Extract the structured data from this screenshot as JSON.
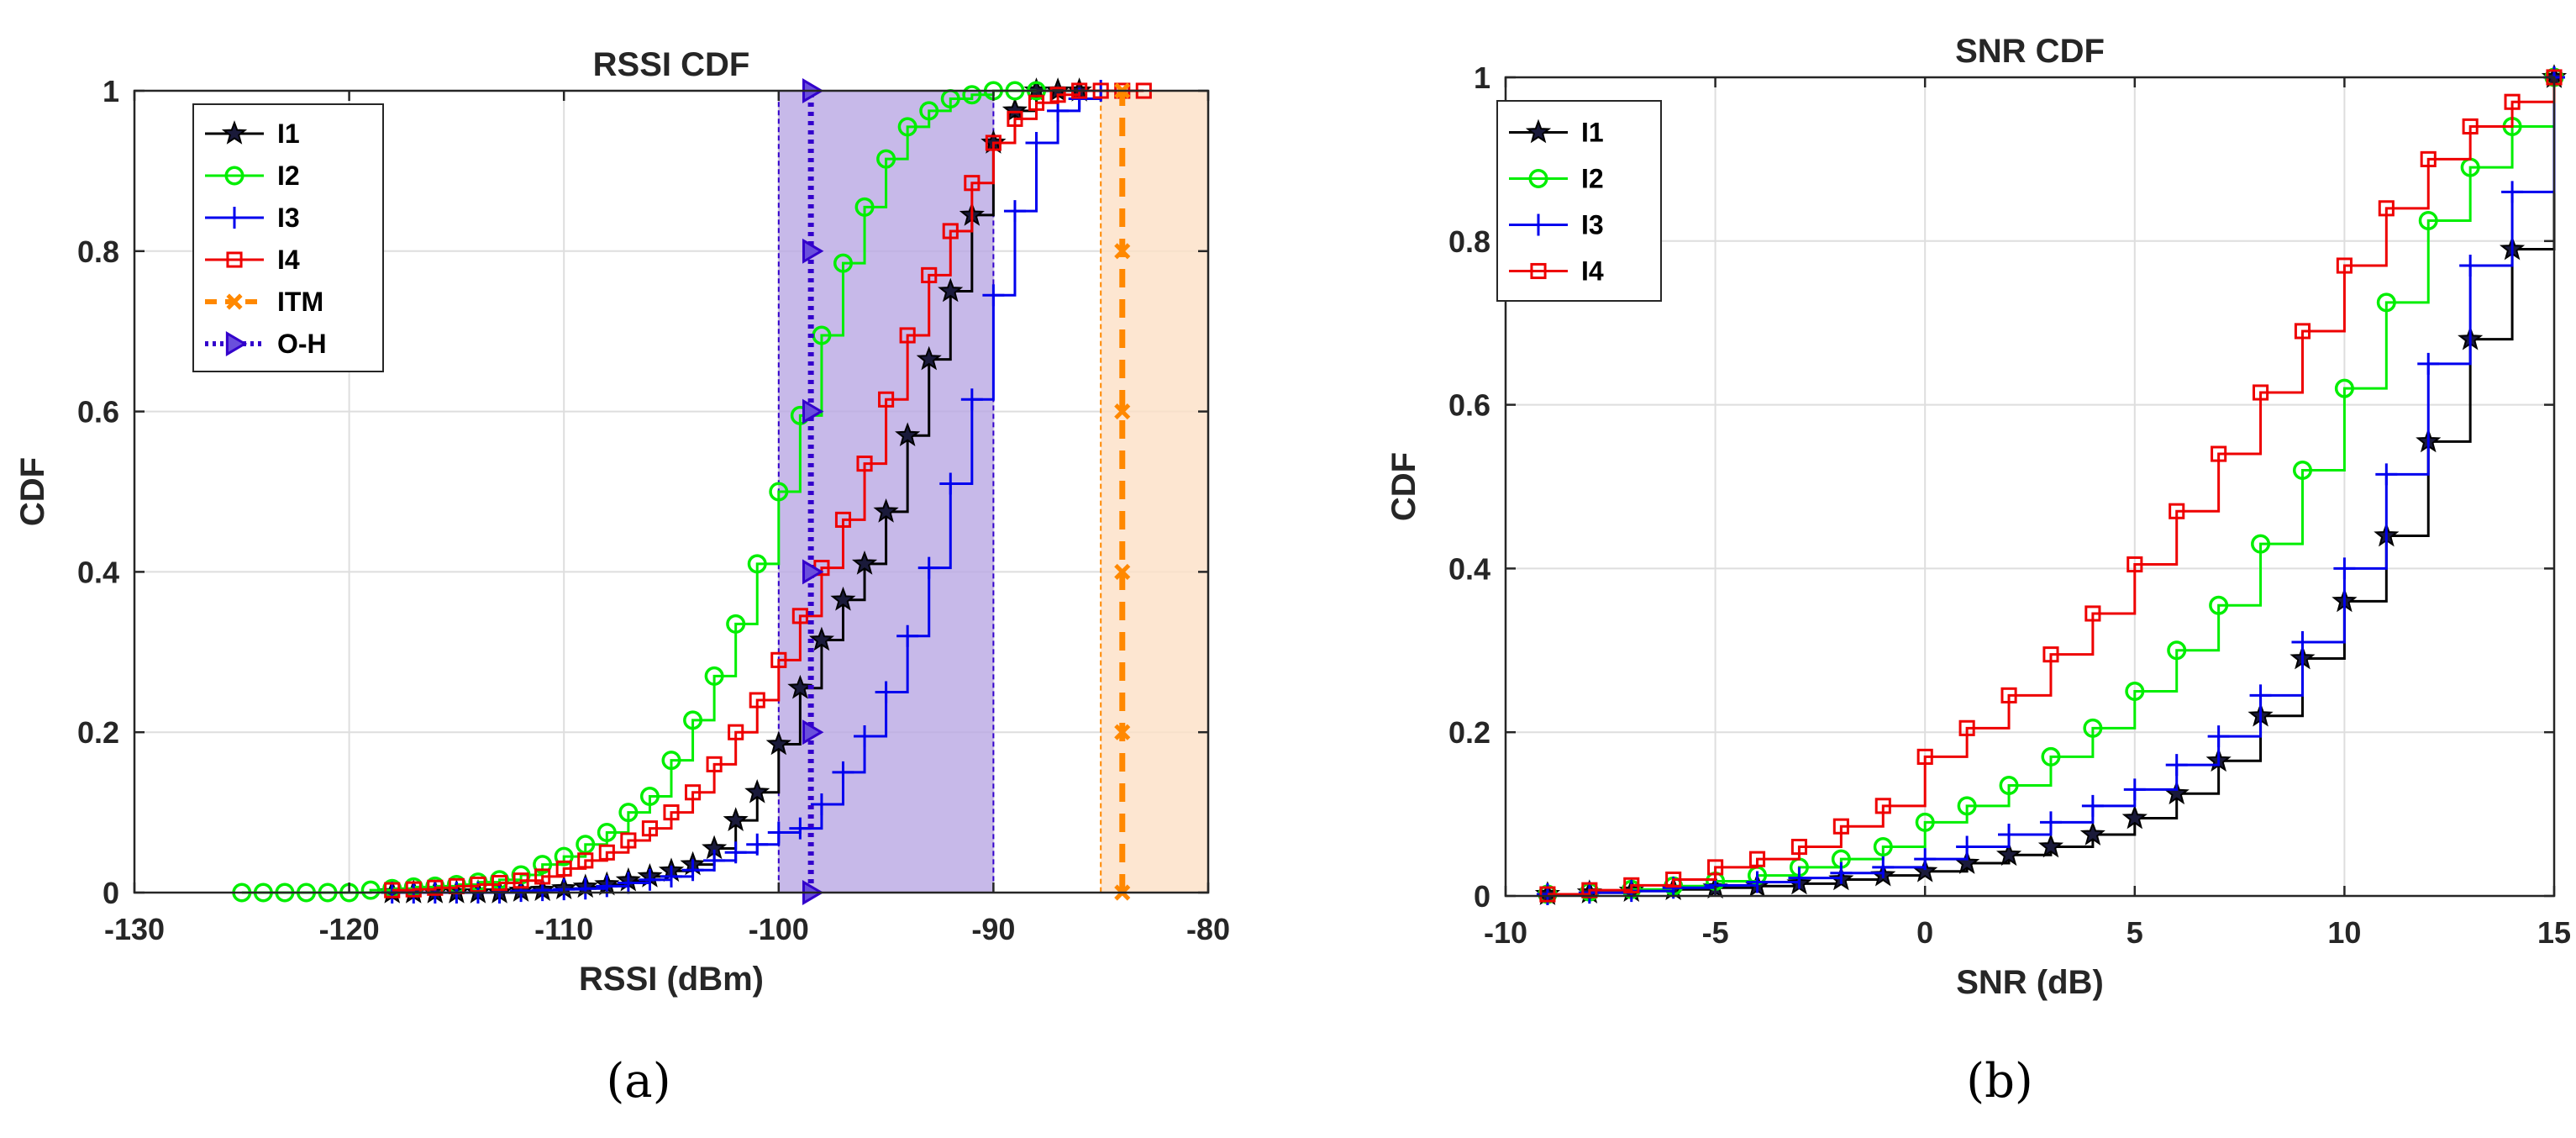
{
  "chart_data": [
    {
      "type": "line",
      "panel_label": "(a)",
      "title": "RSSI CDF",
      "xlabel": "RSSI (dBm)",
      "ylabel": "CDF",
      "xlim": [
        -130,
        -80
      ],
      "ylim": [
        0,
        1
      ],
      "xticks": [
        -130,
        -120,
        -110,
        -100,
        -90,
        -80
      ],
      "yticks": [
        0,
        0.2,
        0.4,
        0.6,
        0.8,
        1
      ],
      "xtick_labels": [
        "-130",
        "-120",
        "-110",
        "-100",
        "-90",
        "-80"
      ],
      "ytick_labels": [
        "0",
        "0.2",
        "0.4",
        "0.6",
        "0.8",
        "1"
      ],
      "grid": true,
      "legend_position": "top-left",
      "shaded_regions": [
        {
          "series": "O-H",
          "x": [
            -100,
            -90
          ],
          "color": "#b9a8e3"
        },
        {
          "series": "ITM",
          "x": [
            -85,
            -80
          ],
          "color": "#fce0c5"
        }
      ],
      "series": [
        {
          "name": "I1",
          "color": "#000000",
          "marker": "star",
          "x": [
            -118,
            -117,
            -116,
            -115,
            -114,
            -113,
            -112,
            -111,
            -110,
            -109,
            -108,
            -107,
            -106,
            -105,
            -104,
            -103,
            -102,
            -101,
            -100,
            -99,
            -98,
            -97,
            -96,
            -95,
            -94,
            -93,
            -92,
            -91,
            -90,
            -89,
            -88,
            -87,
            -86
          ],
          "y": [
            0,
            0,
            0,
            0,
            0,
            0,
            0.002,
            0.003,
            0.005,
            0.007,
            0.01,
            0.015,
            0.02,
            0.027,
            0.035,
            0.055,
            0.09,
            0.125,
            0.185,
            0.255,
            0.315,
            0.365,
            0.41,
            0.475,
            0.57,
            0.665,
            0.75,
            0.845,
            0.935,
            0.975,
            1,
            1,
            1
          ]
        },
        {
          "name": "I2",
          "color": "#00ee00",
          "marker": "circle",
          "x": [
            -125,
            -124,
            -123,
            -122,
            -121,
            -120,
            -119,
            -118,
            -117,
            -116,
            -115,
            -114,
            -113,
            -112,
            -111,
            -110,
            -109,
            -108,
            -107,
            -106,
            -105,
            -104,
            -103,
            -102,
            -101,
            -100,
            -99,
            -98,
            -97,
            -96,
            -95,
            -94,
            -93,
            -92,
            -91,
            -90,
            -89,
            -88
          ],
          "y": [
            0,
            0,
            0,
            0,
            0,
            0,
            0.003,
            0.005,
            0.007,
            0.008,
            0.01,
            0.013,
            0.016,
            0.022,
            0.035,
            0.045,
            0.06,
            0.075,
            0.1,
            0.12,
            0.165,
            0.215,
            0.27,
            0.335,
            0.41,
            0.5,
            0.595,
            0.695,
            0.785,
            0.855,
            0.915,
            0.955,
            0.975,
            0.99,
            0.995,
            1,
            1,
            1
          ]
        },
        {
          "name": "I3",
          "color": "#0000ee",
          "marker": "plus",
          "x": [
            -118,
            -117,
            -116,
            -115,
            -114,
            -113,
            -112,
            -111,
            -110,
            -109,
            -108,
            -107,
            -106,
            -105,
            -104,
            -103,
            -102,
            -101,
            -100,
            -99,
            -98,
            -97,
            -96,
            -95,
            -94,
            -93,
            -92,
            -91,
            -90,
            -89,
            -88,
            -87,
            -86,
            -85
          ],
          "y": [
            0,
            0,
            0,
            0,
            0,
            0,
            0.002,
            0.003,
            0.004,
            0.005,
            0.008,
            0.012,
            0.016,
            0.02,
            0.028,
            0.04,
            0.05,
            0.06,
            0.075,
            0.08,
            0.11,
            0.15,
            0.195,
            0.25,
            0.32,
            0.405,
            0.51,
            0.615,
            0.745,
            0.85,
            0.935,
            0.975,
            0.99,
            1
          ]
        },
        {
          "name": "I4",
          "color": "#ee0000",
          "marker": "square",
          "x": [
            -118,
            -117,
            -116,
            -115,
            -114,
            -113,
            -112,
            -111,
            -110,
            -109,
            -108,
            -107,
            -106,
            -105,
            -104,
            -103,
            -102,
            -101,
            -100,
            -99,
            -98,
            -97,
            -96,
            -95,
            -94,
            -93,
            -92,
            -91,
            -90,
            -89,
            -88,
            -87,
            -86,
            -85,
            -84,
            -83
          ],
          "y": [
            0.003,
            0.004,
            0.006,
            0.008,
            0.01,
            0.012,
            0.015,
            0.02,
            0.03,
            0.04,
            0.05,
            0.065,
            0.08,
            0.1,
            0.125,
            0.16,
            0.2,
            0.24,
            0.29,
            0.345,
            0.405,
            0.465,
            0.535,
            0.615,
            0.695,
            0.77,
            0.825,
            0.885,
            0.935,
            0.965,
            0.985,
            0.995,
            1,
            1,
            1,
            1
          ]
        },
        {
          "name": "ITM",
          "color": "#ff8800",
          "marker": "x",
          "line": "dashed",
          "x": [
            -84,
            -84,
            -84,
            -84,
            -84,
            -84
          ],
          "y": [
            0,
            0.2,
            0.4,
            0.6,
            0.8,
            1
          ]
        },
        {
          "name": "O-H",
          "color": "#3300cc",
          "marker": "triangle-right",
          "line": "dotted",
          "x": [
            -98.5,
            -98.5,
            -98.5,
            -98.5,
            -98.5,
            -98.5
          ],
          "y": [
            0,
            0.2,
            0.4,
            0.6,
            0.8,
            1
          ]
        }
      ]
    },
    {
      "type": "line",
      "panel_label": "(b)",
      "title": "SNR CDF",
      "xlabel": "SNR (dB)",
      "ylabel": "CDF",
      "xlim": [
        -10,
        15
      ],
      "ylim": [
        0,
        1
      ],
      "xticks": [
        -10,
        -5,
        0,
        5,
        10,
        15
      ],
      "yticks": [
        0,
        0.2,
        0.4,
        0.6,
        0.8,
        1
      ],
      "xtick_labels": [
        "-10",
        "-5",
        "0",
        "5",
        "10",
        "15"
      ],
      "ytick_labels": [
        "0",
        "0.2",
        "0.4",
        "0.6",
        "0.8",
        "1"
      ],
      "grid": true,
      "legend_position": "top-left",
      "series": [
        {
          "name": "I1",
          "color": "#000000",
          "marker": "star",
          "x": [
            -9,
            -8,
            -7,
            -6,
            -5,
            -4,
            -3,
            -2,
            -1,
            0,
            1,
            2,
            3,
            4,
            5,
            6,
            7,
            8,
            9,
            10,
            11,
            12,
            13,
            14,
            15
          ],
          "y": [
            0.002,
            0.004,
            0.006,
            0.008,
            0.01,
            0.012,
            0.015,
            0.02,
            0.025,
            0.03,
            0.04,
            0.05,
            0.06,
            0.075,
            0.095,
            0.125,
            0.165,
            0.22,
            0.29,
            0.36,
            0.44,
            0.555,
            0.68,
            0.79,
            1
          ]
        },
        {
          "name": "I2",
          "color": "#00ee00",
          "marker": "circle",
          "x": [
            -9,
            -8,
            -7,
            -6,
            -5,
            -4,
            -3,
            -2,
            -1,
            0,
            1,
            2,
            3,
            4,
            5,
            6,
            7,
            8,
            9,
            10,
            11,
            12,
            13,
            14,
            15
          ],
          "y": [
            0.002,
            0.005,
            0.008,
            0.012,
            0.018,
            0.025,
            0.035,
            0.045,
            0.06,
            0.09,
            0.11,
            0.135,
            0.17,
            0.205,
            0.25,
            0.3,
            0.355,
            0.43,
            0.52,
            0.62,
            0.725,
            0.825,
            0.89,
            0.94,
            1
          ]
        },
        {
          "name": "I3",
          "color": "#0000ee",
          "marker": "plus",
          "x": [
            -9,
            -8,
            -7,
            -6,
            -5,
            -4,
            -3,
            -2,
            -1,
            0,
            1,
            2,
            3,
            4,
            5,
            6,
            7,
            8,
            9,
            10,
            11,
            12,
            13,
            14,
            15
          ],
          "y": [
            0.002,
            0.004,
            0.006,
            0.01,
            0.013,
            0.017,
            0.022,
            0.028,
            0.035,
            0.045,
            0.06,
            0.075,
            0.09,
            0.11,
            0.13,
            0.16,
            0.195,
            0.245,
            0.31,
            0.4,
            0.515,
            0.65,
            0.77,
            0.86,
            1
          ]
        },
        {
          "name": "I4",
          "color": "#ee0000",
          "marker": "square",
          "x": [
            -9,
            -8,
            -7,
            -6,
            -5,
            -4,
            -3,
            -2,
            -1,
            0,
            1,
            2,
            3,
            4,
            5,
            6,
            7,
            8,
            9,
            10,
            11,
            12,
            13,
            14,
            15
          ],
          "y": [
            0.002,
            0.007,
            0.013,
            0.02,
            0.035,
            0.045,
            0.06,
            0.085,
            0.11,
            0.17,
            0.205,
            0.245,
            0.295,
            0.345,
            0.405,
            0.47,
            0.54,
            0.615,
            0.69,
            0.77,
            0.84,
            0.9,
            0.94,
            0.97,
            1
          ]
        }
      ]
    }
  ]
}
